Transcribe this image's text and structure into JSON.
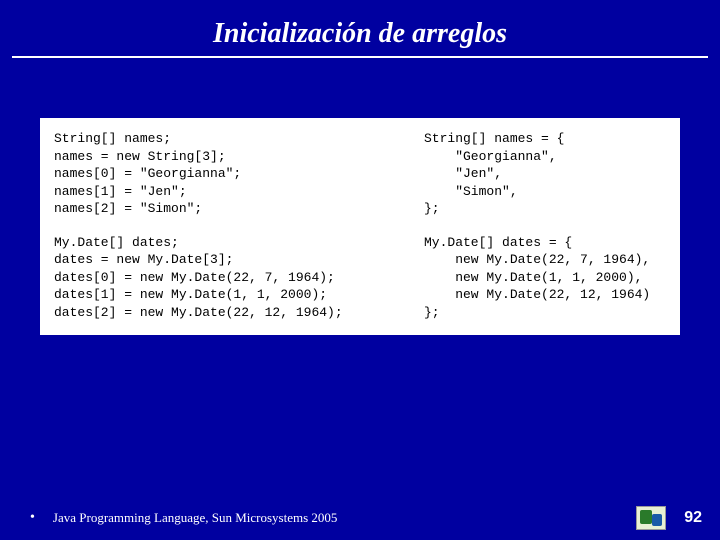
{
  "slide": {
    "title": "Inicialización de arreglos",
    "background_color": "#0000a0",
    "title_color": "#ffffff",
    "title_fontsize": 28,
    "rule_color": "#ffffff"
  },
  "code": {
    "panel_bg": "#ffffff",
    "font": "Courier New",
    "fontsize": 13,
    "block1_left": "String[] names;\nnames = new String[3];\nnames[0] = \"Georgianna\";\nnames[1] = \"Jen\";\nnames[2] = \"Simon\";",
    "block1_right": "String[] names = {\n    \"Georgianna\",\n    \"Jen\",\n    \"Simon\",\n};",
    "block2_left": "My.Date[] dates;\ndates = new My.Date[3];\ndates[0] = new My.Date(22, 7, 1964);\ndates[1] = new My.Date(1, 1, 2000);\ndates[2] = new My.Date(22, 12, 1964);",
    "block2_right": "My.Date[] dates = {\n    new My.Date(22, 7, 1964),\n    new My.Date(1, 1, 2000),\n    new My.Date(22, 12, 1964)\n};"
  },
  "footer": {
    "bullet": "•",
    "text": "Java Programming Language, Sun Microsystems 2005",
    "page_number": "92",
    "logo_name": "bluej-logo"
  }
}
